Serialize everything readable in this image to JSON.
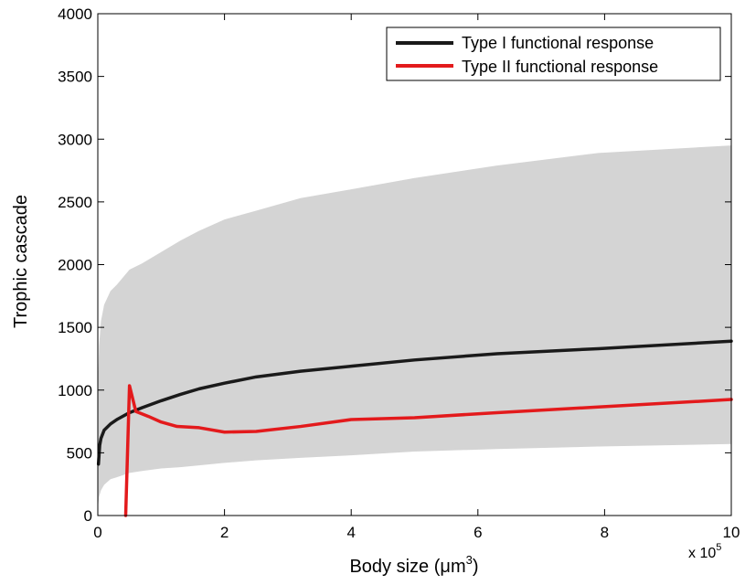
{
  "chart_data": {
    "type": "line",
    "xlabel": "Body size (μm³)",
    "xlabel_parts": {
      "text": "Body size (",
      "mu": "μ",
      "unit": "m",
      "sup": "3",
      "close": ")"
    },
    "ylabel": "Trophic cascade",
    "x_multiplier": {
      "text": "x 10",
      "sup": "5"
    },
    "xlim": [
      0,
      10
    ],
    "ylim": [
      0,
      4000
    ],
    "xticks": [
      0,
      2,
      4,
      6,
      8,
      10
    ],
    "yticks": [
      0,
      500,
      1000,
      1500,
      2000,
      2500,
      3000,
      3500,
      4000
    ],
    "grid": false,
    "legend_position": "top-right",
    "band": {
      "color": "#d4d4d4",
      "x": [
        0.005,
        0.02,
        0.05,
        0.1,
        0.2,
        0.3,
        0.5,
        0.7,
        1.0,
        1.3,
        1.6,
        2.0,
        2.5,
        3.2,
        4.0,
        5.0,
        6.3,
        7.9,
        10.0
      ],
      "upper": [
        1100,
        1350,
        1550,
        1680,
        1790,
        1840,
        1960,
        2010,
        2100,
        2190,
        2270,
        2360,
        2430,
        2530,
        2600,
        2690,
        2790,
        2890,
        2950
      ],
      "lower": [
        80,
        150,
        200,
        245,
        290,
        305,
        340,
        355,
        375,
        385,
        400,
        420,
        440,
        460,
        480,
        510,
        530,
        550,
        570
      ]
    },
    "series": [
      {
        "name": "Type I functional response",
        "color": "#1a1a1a",
        "x": [
          0.01,
          0.03,
          0.05,
          0.1,
          0.2,
          0.3,
          0.5,
          0.7,
          1.0,
          1.3,
          1.6,
          2.0,
          2.5,
          3.2,
          4.0,
          5.0,
          6.3,
          7.9,
          10.0
        ],
        "y": [
          410,
          560,
          615,
          680,
          730,
          765,
          820,
          860,
          915,
          965,
          1010,
          1055,
          1105,
          1150,
          1190,
          1240,
          1290,
          1330,
          1390
        ]
      },
      {
        "name": "Type II functional response",
        "color": "#e31a1c",
        "x": [
          0.44,
          0.5,
          0.6,
          0.8,
          1.0,
          1.25,
          1.6,
          2.0,
          2.5,
          3.2,
          4.0,
          5.0,
          6.3,
          7.9,
          10.0
        ],
        "y": [
          0,
          1035,
          830,
          790,
          745,
          710,
          700,
          665,
          670,
          710,
          765,
          780,
          820,
          865,
          925
        ]
      }
    ]
  }
}
